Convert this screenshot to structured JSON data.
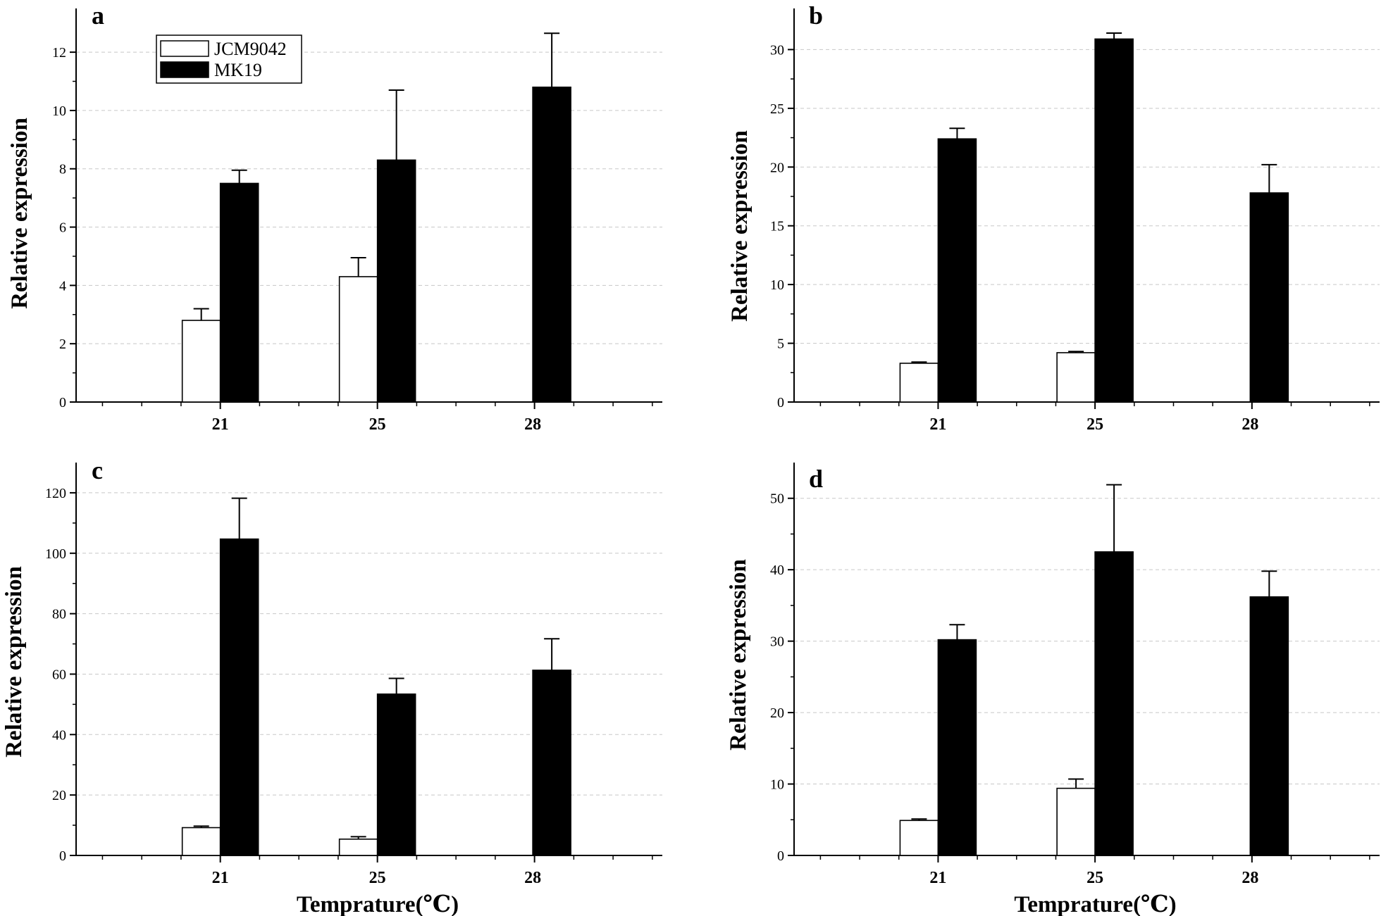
{
  "chart_data": [
    {
      "type": "bar",
      "panel_label": "a",
      "categories": [
        "21",
        "25",
        "28"
      ],
      "series": [
        {
          "name": "JCM9042",
          "fill": "#ffffff",
          "values": [
            2.8,
            4.3,
            0
          ],
          "errors": [
            0.4,
            0.65,
            0
          ]
        },
        {
          "name": "MK19",
          "fill": "#000000",
          "values": [
            7.5,
            8.3,
            10.8
          ],
          "errors": [
            0.45,
            2.4,
            1.85
          ]
        }
      ],
      "ylabel": "Relative expression",
      "xlabel": "",
      "ylim": [
        0,
        13.5
      ],
      "yticks": [
        0,
        2,
        4,
        6,
        8,
        10,
        12
      ],
      "grid": true,
      "legend": {
        "position": "top-left",
        "entries": [
          "JCM9042",
          "MK19"
        ]
      }
    },
    {
      "type": "bar",
      "panel_label": "b",
      "categories": [
        "21",
        "25",
        "28"
      ],
      "series": [
        {
          "name": "JCM9042",
          "fill": "#ffffff",
          "values": [
            3.3,
            4.2,
            0
          ],
          "errors": [
            0.1,
            0.1,
            0
          ]
        },
        {
          "name": "MK19",
          "fill": "#000000",
          "values": [
            22.4,
            30.9,
            17.8
          ],
          "errors": [
            0.9,
            0.5,
            2.4
          ]
        }
      ],
      "ylabel": "Relative expression",
      "xlabel": "",
      "ylim": [
        0,
        33.5
      ],
      "yticks": [
        0,
        5,
        10,
        15,
        20,
        25,
        30
      ],
      "grid": true
    },
    {
      "type": "bar",
      "panel_label": "c",
      "categories": [
        "21",
        "25",
        "28"
      ],
      "series": [
        {
          "name": "JCM9042",
          "fill": "#ffffff",
          "values": [
            9.2,
            5.4,
            0
          ],
          "errors": [
            0.5,
            0.8,
            0
          ]
        },
        {
          "name": "MK19",
          "fill": "#000000",
          "values": [
            104.7,
            53.4,
            61.3
          ],
          "errors": [
            13.5,
            5.2,
            10.4
          ]
        }
      ],
      "ylabel": "Relative expression",
      "xlabel": "Temprature(℃)",
      "ylim": [
        0,
        130
      ],
      "yticks": [
        0,
        20,
        40,
        60,
        80,
        100,
        120
      ],
      "grid": true
    },
    {
      "type": "bar",
      "panel_label": "d",
      "categories": [
        "21",
        "25",
        "28"
      ],
      "series": [
        {
          "name": "JCM9042",
          "fill": "#ffffff",
          "values": [
            4.9,
            9.4,
            0
          ],
          "errors": [
            0.2,
            1.3,
            0
          ]
        },
        {
          "name": "MK19",
          "fill": "#000000",
          "values": [
            30.2,
            42.5,
            36.2
          ],
          "errors": [
            2.1,
            9.4,
            3.6
          ]
        }
      ],
      "ylabel": "Relative expression",
      "xlabel": "Temprature(℃)",
      "ylim": [
        0,
        55
      ],
      "yticks": [
        0,
        10,
        20,
        30,
        40,
        50
      ],
      "grid": true
    }
  ]
}
